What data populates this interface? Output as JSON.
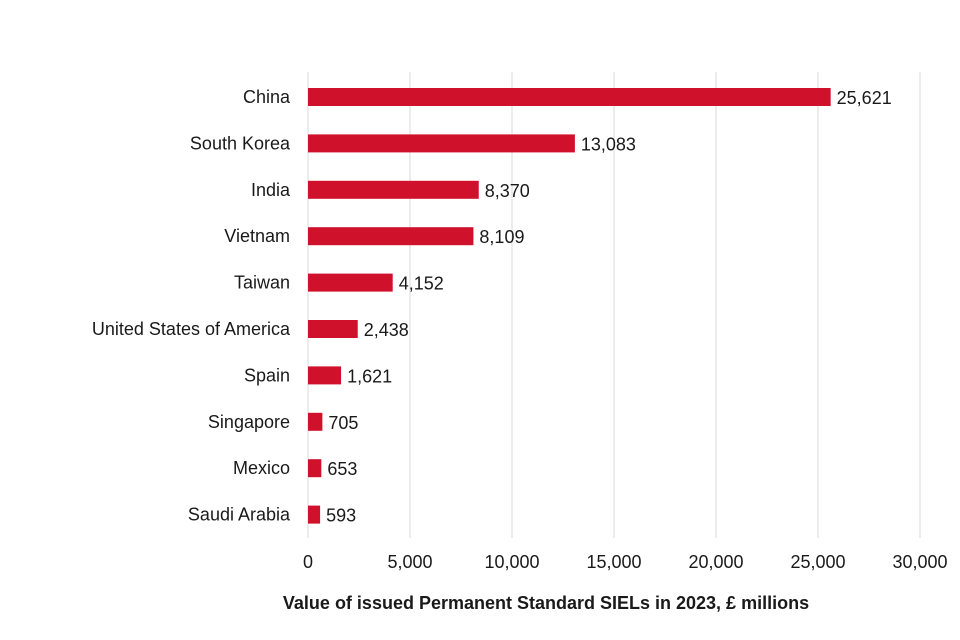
{
  "chart_data": {
    "type": "bar",
    "orientation": "horizontal",
    "title": "",
    "xlabel": "Value of issued Permanent Standard SIELs in 2023, £ millions",
    "ylabel": "",
    "categories": [
      "China",
      "South Korea",
      "India",
      "Vietnam",
      "Taiwan",
      "United States of America",
      "Spain",
      "Singapore",
      "Mexico",
      "Saudi Arabia"
    ],
    "values": [
      25621,
      13083,
      8370,
      8109,
      4152,
      2438,
      1621,
      705,
      653,
      593
    ],
    "value_labels": [
      "25,621",
      "13,083",
      "8,370",
      "8,109",
      "4,152",
      "2,438",
      "1,621",
      "705",
      "653",
      "593"
    ],
    "xlim": [
      0,
      30000
    ],
    "xticks": [
      0,
      5000,
      10000,
      15000,
      20000,
      25000,
      30000
    ],
    "xtick_labels": [
      "0",
      "5,000",
      "10,000",
      "15,000",
      "20,000",
      "25,000",
      "30,000"
    ],
    "grid": true,
    "legend": "none",
    "bar_color": "#d0112b"
  }
}
